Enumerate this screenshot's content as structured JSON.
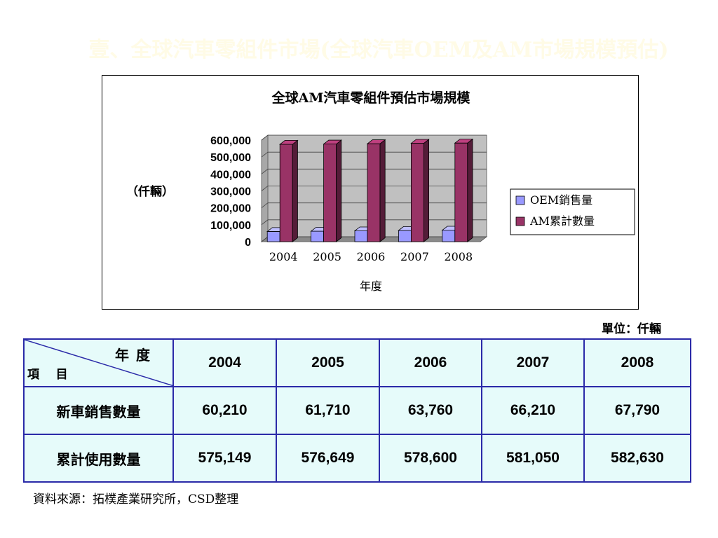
{
  "slide": {
    "title": "壹、全球汽車零組件市場(全球汽車OEM及AM市場規模預估)"
  },
  "chart_data": {
    "type": "bar",
    "title": "全球AM汽車零組件預估市場規模",
    "xlabel": "年度",
    "ylabel": "（仟輛）",
    "categories": [
      "2004",
      "2005",
      "2006",
      "2007",
      "2008"
    ],
    "ylim": [
      0,
      600000
    ],
    "yticks": [
      "0",
      "100,000",
      "200,000",
      "300,000",
      "400,000",
      "500,000",
      "600,000"
    ],
    "ytick_values": [
      0,
      100000,
      200000,
      300000,
      400000,
      500000,
      600000
    ],
    "three_d": true,
    "grid": true,
    "legend_position": "right",
    "series": [
      {
        "name": "OEM銷售量",
        "values": [
          60210,
          61710,
          63760,
          66210,
          67790
        ],
        "color": "#9999ff"
      },
      {
        "name": "AM累計數量",
        "values": [
          575149,
          576649,
          578600,
          581050,
          582630
        ],
        "color": "#993366"
      }
    ]
  },
  "unit_note": "單位：仟輛",
  "table": {
    "corner_year": "年度",
    "corner_item": "項    目",
    "years": [
      "2004",
      "2005",
      "2006",
      "2007",
      "2008"
    ],
    "rows": [
      {
        "label": "新車銷售數量",
        "values": [
          "60,210",
          "61,710",
          "63,760",
          "66,210",
          "67,790"
        ]
      },
      {
        "label": "累計使用數量",
        "values": [
          "575,149",
          "576,649",
          "578,600",
          "581,050",
          "582,630"
        ]
      }
    ]
  },
  "source_note": "資料來源：拓樸產業研究所，CSD整理"
}
